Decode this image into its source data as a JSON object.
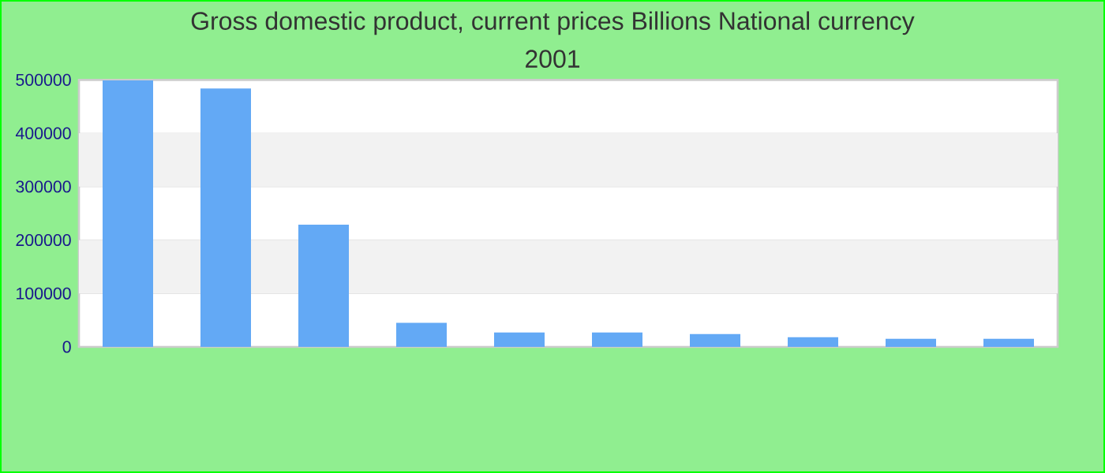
{
  "chart_data": {
    "type": "bar",
    "title": "Gross domestic product, current prices Billions National currency",
    "subtitle": "2001",
    "categories": [
      null,
      null,
      null,
      null,
      null,
      null,
      null,
      null,
      null,
      null
    ],
    "values": [
      499000,
      484000,
      229000,
      45000,
      27000,
      27000,
      24000,
      18000,
      15000,
      15000
    ],
    "color": "#63a9f5",
    "ylim": [
      0,
      500000
    ],
    "yticks": [
      0,
      100000,
      200000,
      300000,
      400000,
      500000
    ],
    "grid": "y"
  }
}
